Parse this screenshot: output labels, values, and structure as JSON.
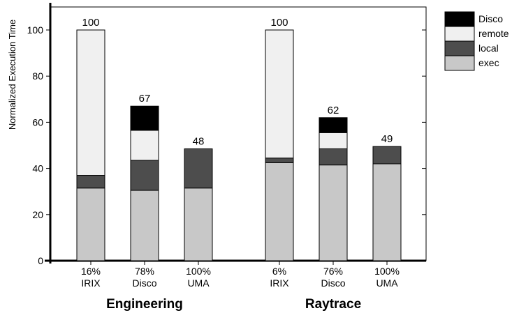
{
  "chart_data": {
    "type": "bar",
    "stacked": true,
    "ylabel": "Normalized Execution Time",
    "ylim": [
      0,
      110
    ],
    "yticks": [
      0,
      20,
      40,
      60,
      80,
      100
    ],
    "legend_position": "top-right",
    "stack_order": [
      "exec",
      "local",
      "remote",
      "Disco"
    ],
    "legend_entries": [
      "Disco",
      "remote",
      "local",
      "exec"
    ],
    "colors": {
      "exec": "#c8c8c8",
      "local": "#4d4d4d",
      "remote": "#f0f0f0",
      "Disco": "#000000"
    },
    "groups": [
      {
        "name": "Engineering",
        "bars": [
          {
            "label_pct": "16%",
            "label_name": "IRIX",
            "total": "100",
            "exec": 31.5,
            "local": 5.5,
            "remote": 63,
            "Disco": 0
          },
          {
            "label_pct": "78%",
            "label_name": "Disco",
            "total": "67",
            "exec": 30.5,
            "local": 13,
            "remote": 13,
            "Disco": 10.5
          },
          {
            "label_pct": "100%",
            "label_name": "UMA",
            "total": "48",
            "exec": 31.5,
            "local": 17,
            "remote": 0,
            "Disco": 0
          }
        ]
      },
      {
        "name": "Raytrace",
        "bars": [
          {
            "label_pct": "6%",
            "label_name": "IRIX",
            "total": "100",
            "exec": 42.5,
            "local": 2,
            "remote": 55.5,
            "Disco": 0
          },
          {
            "label_pct": "76%",
            "label_name": "Disco",
            "total": "62",
            "exec": 41.5,
            "local": 7,
            "remote": 7,
            "Disco": 6.5
          },
          {
            "label_pct": "100%",
            "label_name": "UMA",
            "total": "49",
            "exec": 42,
            "local": 7.5,
            "remote": 0,
            "Disco": 0
          }
        ]
      }
    ]
  }
}
